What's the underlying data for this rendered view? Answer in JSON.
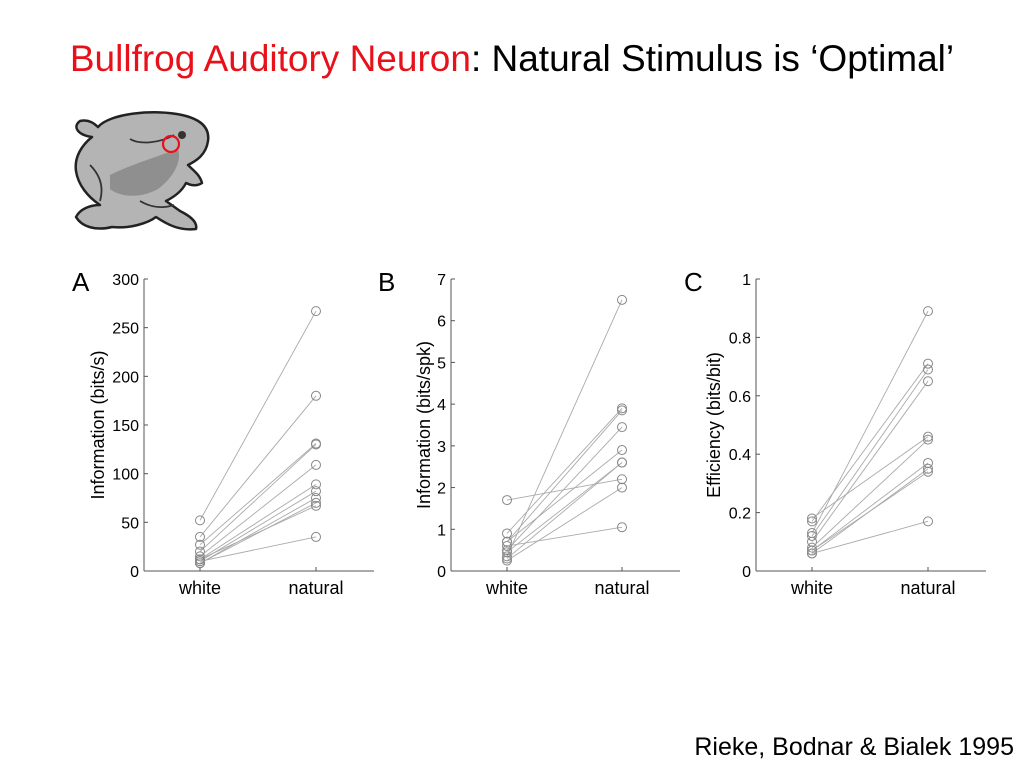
{
  "title": {
    "highlight": "Bullfrog Auditory Neuron",
    "rest": ": Natural Stimulus is ‘Optimal’"
  },
  "illustration": {
    "icon": "bullfrog-icon",
    "marker": "red-circle-icon"
  },
  "citation": "Rieke, Bodnar & Bialek 1995",
  "colors": {
    "title_highlight": "#e8111a",
    "line": "#aaaaaa",
    "marker": "#888888"
  },
  "chart_data": [
    {
      "type": "scatter",
      "panel_label": "A",
      "ylabel": "Information (bits/s)",
      "categories": [
        "white",
        "natural"
      ],
      "ylim": [
        0,
        300
      ],
      "yticks": [
        "0",
        "50",
        "100",
        "150",
        "200",
        "250",
        "300"
      ],
      "pairs": [
        [
          52,
          267
        ],
        [
          35,
          180
        ],
        [
          27,
          131
        ],
        [
          20,
          130
        ],
        [
          15,
          109
        ],
        [
          12,
          89
        ],
        [
          10,
          82
        ],
        [
          8,
          75
        ],
        [
          8,
          70
        ],
        [
          12,
          67
        ],
        [
          10,
          35
        ]
      ]
    },
    {
      "type": "scatter",
      "panel_label": "B",
      "ylabel": "Information (bits/spk)",
      "categories": [
        "white",
        "natural"
      ],
      "ylim": [
        0,
        7
      ],
      "yticks": [
        "0",
        "1",
        "2",
        "3",
        "4",
        "5",
        "6",
        "7"
      ],
      "pairs": [
        [
          0.35,
          6.5
        ],
        [
          0.9,
          3.9
        ],
        [
          0.7,
          3.85
        ],
        [
          0.5,
          3.45
        ],
        [
          0.7,
          2.9
        ],
        [
          0.45,
          2.6
        ],
        [
          0.3,
          2.6
        ],
        [
          1.7,
          2.2
        ],
        [
          0.25,
          2.0
        ],
        [
          0.6,
          1.05
        ]
      ]
    },
    {
      "type": "scatter",
      "panel_label": "C",
      "ylabel": "Efficiency (bits/bit)",
      "categories": [
        "white",
        "natural"
      ],
      "ylim": [
        0,
        1
      ],
      "yticks": [
        "0",
        "0.2",
        "0.4",
        "0.6",
        "0.8",
        "1"
      ],
      "pairs": [
        [
          0.13,
          0.89
        ],
        [
          0.17,
          0.71
        ],
        [
          0.12,
          0.69
        ],
        [
          0.1,
          0.65
        ],
        [
          0.18,
          0.46
        ],
        [
          0.08,
          0.45
        ],
        [
          0.07,
          0.37
        ],
        [
          0.06,
          0.35
        ],
        [
          0.07,
          0.34
        ],
        [
          0.06,
          0.17
        ]
      ]
    }
  ]
}
